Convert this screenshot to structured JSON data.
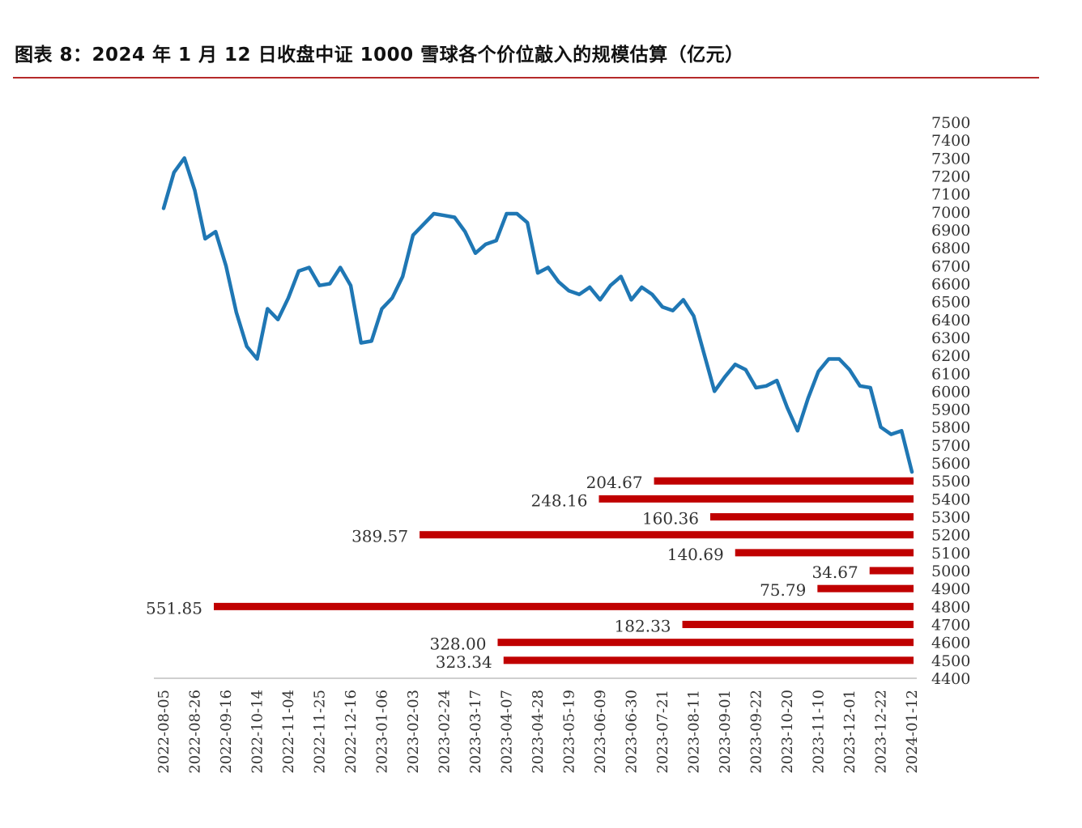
{
  "title": "图表 8：2024 年 1 月 12 日收盘中证 1000 雪球各个价位敲入的规模估算（亿元）",
  "colors": {
    "line": "#1f77b4",
    "bar": "#c00000",
    "title_rule": "#b52a2a",
    "axis": "#bfbfbf"
  },
  "chart_data": {
    "type": "line+bar",
    "title": "图表 8：2024 年 1 月 12 日收盘中证 1000 雪球各个价位敲入的规模估算（亿元）",
    "y_axis": {
      "position": "right",
      "min": 4400,
      "max": 7500,
      "step": 100,
      "ticks": [
        "7500",
        "7400",
        "7300",
        "7200",
        "7100",
        "7000",
        "6900",
        "6800",
        "6700",
        "6600",
        "6500",
        "6400",
        "6300",
        "6200",
        "6100",
        "6000",
        "5900",
        "5800",
        "5700",
        "5600",
        "5500",
        "5400",
        "5300",
        "5200",
        "5100",
        "5000",
        "4900",
        "4800",
        "4700",
        "4600",
        "4500",
        "4400"
      ]
    },
    "x_tick_labels": [
      "2022-08-05",
      "2022-08-26",
      "2022-09-16",
      "2022-10-14",
      "2022-11-04",
      "2022-11-25",
      "2022-12-16",
      "2023-01-06",
      "2023-02-03",
      "2023-02-24",
      "2023-03-17",
      "2023-04-07",
      "2023-04-28",
      "2023-05-19",
      "2023-06-09",
      "2023-06-30",
      "2023-07-21",
      "2023-08-11",
      "2023-09-01",
      "2023-09-22",
      "2023-10-20",
      "2023-11-10",
      "2023-12-01",
      "2023-12-22",
      "2024-01-12"
    ],
    "line_series": {
      "values": [
        7020,
        7220,
        7300,
        7120,
        6850,
        6890,
        6700,
        6440,
        6250,
        6180,
        6460,
        6400,
        6520,
        6670,
        6690,
        6590,
        6600,
        6690,
        6590,
        6270,
        6280,
        6460,
        6520,
        6640,
        6870,
        6930,
        6990,
        6980,
        6970,
        6890,
        6770,
        6820,
        6840,
        6990,
        6990,
        6940,
        6660,
        6690,
        6610,
        6560,
        6540,
        6580,
        6510,
        6590,
        6640,
        6510,
        6580,
        6540,
        6470,
        6450,
        6510,
        6420,
        6210,
        6000,
        6080,
        6150,
        6120,
        6020,
        6030,
        6060,
        5910,
        5780,
        5960,
        6110,
        6180,
        6180,
        6120,
        6030,
        6020,
        5800,
        5760,
        5780,
        5550
      ]
    },
    "bars": [
      {
        "level": 5500,
        "value": 204.67,
        "label": "204.67"
      },
      {
        "level": 5400,
        "value": 248.16,
        "label": "248.16"
      },
      {
        "level": 5300,
        "value": 160.36,
        "label": "160.36"
      },
      {
        "level": 5200,
        "value": 389.57,
        "label": "389.57"
      },
      {
        "level": 5100,
        "value": 140.69,
        "label": "140.69"
      },
      {
        "level": 5000,
        "value": 34.67,
        "label": "34.67"
      },
      {
        "level": 4900,
        "value": 75.79,
        "label": "75.79"
      },
      {
        "level": 4800,
        "value": 551.85,
        "label": "551.85"
      },
      {
        "level": 4700,
        "value": 182.33,
        "label": "182.33"
      },
      {
        "level": 4600,
        "value": 328.0,
        "label": "328.00"
      },
      {
        "level": 4500,
        "value": 323.34,
        "label": "323.34"
      }
    ],
    "bar_scale_max": 551.85,
    "grid": false,
    "legend": "none"
  }
}
